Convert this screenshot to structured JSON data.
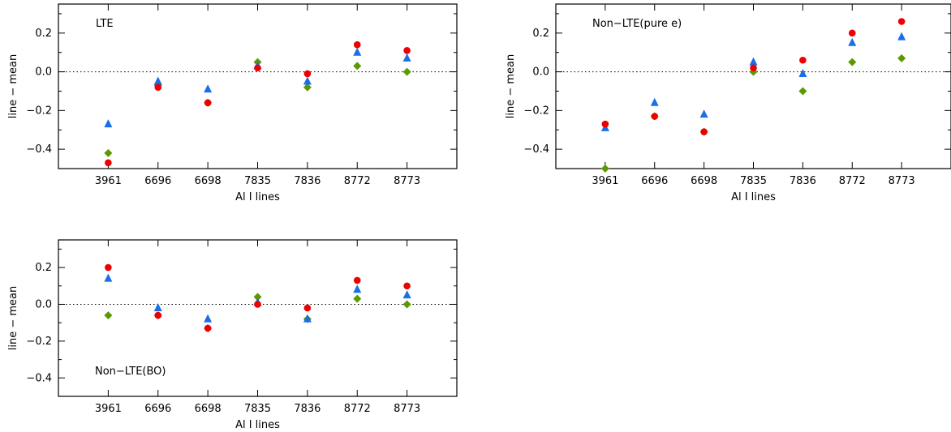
{
  "chart_data": [
    {
      "type": "scatter",
      "annotation": "LTE",
      "xlabel": "Al I lines",
      "ylabel": "line − mean",
      "categories": [
        "3961",
        "6696",
        "6698",
        "7835",
        "7836",
        "8772",
        "8773"
      ],
      "ylim": [
        -0.5,
        0.35
      ],
      "yticks": [
        "−0.4",
        "−0.2",
        "0.0",
        "0.2"
      ],
      "zero_line": "dotted",
      "series": [
        {
          "marker": "circle",
          "color": "#ee0000",
          "values": [
            -0.47,
            -0.08,
            -0.16,
            0.02,
            -0.01,
            0.14,
            0.11
          ]
        },
        {
          "marker": "triangle",
          "color": "#1a6ee8",
          "values": [
            -0.27,
            -0.05,
            -0.09,
            0.03,
            -0.05,
            0.1,
            0.07
          ]
        },
        {
          "marker": "diamond",
          "color": "#5a9a00",
          "values": [
            -0.42,
            -0.07,
            -0.16,
            0.05,
            -0.08,
            0.03,
            0.0
          ]
        }
      ]
    },
    {
      "type": "scatter",
      "annotation": "Non−LTE(pure e)",
      "xlabel": "Al I lines",
      "ylabel": "line − mean",
      "categories": [
        "3961",
        "6696",
        "6698",
        "7835",
        "7836",
        "8772",
        "8773"
      ],
      "ylim": [
        -0.5,
        0.35
      ],
      "yticks": [
        "−0.4",
        "−0.2",
        "0.0",
        "0.2"
      ],
      "zero_line": "dotted",
      "series": [
        {
          "marker": "circle",
          "color": "#ee0000",
          "values": [
            -0.27,
            -0.23,
            -0.31,
            0.02,
            0.06,
            0.2,
            0.26
          ]
        },
        {
          "marker": "triangle",
          "color": "#1a6ee8",
          "values": [
            -0.29,
            -0.16,
            -0.22,
            0.05,
            -0.01,
            0.15,
            0.18
          ]
        },
        {
          "marker": "diamond",
          "color": "#5a9a00",
          "values": [
            -0.5,
            -0.23,
            -0.31,
            0.0,
            -0.1,
            0.05,
            0.07
          ]
        }
      ]
    },
    {
      "type": "scatter",
      "annotation": "Non−LTE(BO)",
      "xlabel": "Al I lines",
      "ylabel": "line − mean",
      "categories": [
        "3961",
        "6696",
        "6698",
        "7835",
        "7836",
        "8772",
        "8773"
      ],
      "ylim": [
        -0.5,
        0.35
      ],
      "yticks": [
        "−0.4",
        "−0.2",
        "0.0",
        "0.2"
      ],
      "zero_line": "dotted",
      "series": [
        {
          "marker": "circle",
          "color": "#ee0000",
          "values": [
            0.2,
            -0.06,
            -0.13,
            0.0,
            -0.02,
            0.13,
            0.1
          ]
        },
        {
          "marker": "triangle",
          "color": "#1a6ee8",
          "values": [
            0.14,
            -0.02,
            -0.08,
            0.01,
            -0.08,
            0.08,
            0.05
          ]
        },
        {
          "marker": "diamond",
          "color": "#5a9a00",
          "values": [
            -0.06,
            -0.06,
            -0.13,
            0.04,
            -0.08,
            0.03,
            0.0
          ]
        }
      ]
    }
  ]
}
